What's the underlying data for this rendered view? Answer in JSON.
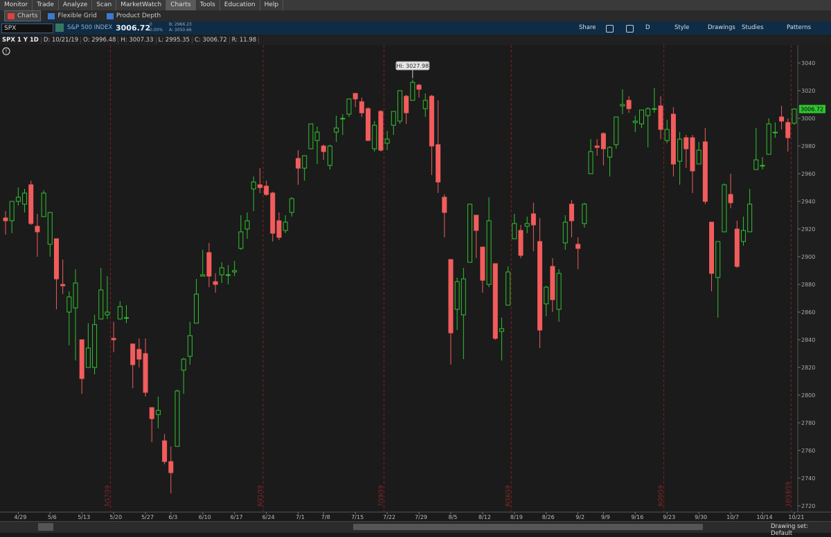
{
  "menu": [
    "Monitor",
    "Trade",
    "Analyze",
    "Scan",
    "MarketWatch",
    "Charts",
    "Tools",
    "Education",
    "Help"
  ],
  "tabs": [
    "Charts",
    "Flexible Grid",
    "Product Depth"
  ],
  "toolbar": {
    "symbol": "SPX",
    "description": "S&P 500 INDEX",
    "last": "3006.72",
    "change": "0",
    "change_pct": "0.00%",
    "bid": "B: 2966.23",
    "ask": "A: 3050.66",
    "buttons": [
      "Share",
      "D",
      "Style",
      "Drawings",
      "Studies",
      "Patterns"
    ]
  },
  "info": [
    "SPX 1 Y 1D",
    "D: 10/21/19",
    "O: 2996.48",
    "H: 3007.33",
    "L: 2995.35",
    "C: 3006.72",
    "R: 11.98"
  ],
  "footer": "Drawing set: Default",
  "chart_data": {
    "type": "candlestick",
    "up_color": "#2fc42f",
    "down_color": "#f25c5c",
    "annotation": "Hi: 3027.98",
    "last": 3006.72,
    "xlim": [
      -0.87,
      124.55
    ],
    "ylim": [
      2715.5,
      3053
    ],
    "yticks": [
      2720,
      2740,
      2760,
      2780,
      2800,
      2820,
      2840,
      2860,
      2880,
      2900,
      2920,
      2940,
      2960,
      2980,
      3000,
      3020,
      3040
    ],
    "xticks": [
      {
        "value": 2,
        "label": "4/29"
      },
      {
        "value": 7,
        "label": "5/6"
      },
      {
        "value": 12,
        "label": "5/13"
      },
      {
        "value": 17,
        "label": "5/20"
      },
      {
        "value": 22,
        "label": "5/27"
      },
      {
        "value": 26,
        "label": "6/3"
      },
      {
        "value": 31,
        "label": "6/10"
      },
      {
        "value": 36,
        "label": "6/17"
      },
      {
        "value": 41,
        "label": "6/24"
      },
      {
        "value": 46,
        "label": "7/1"
      },
      {
        "value": 50,
        "label": "7/8"
      },
      {
        "value": 55,
        "label": "7/15"
      },
      {
        "value": 60,
        "label": "7/22"
      },
      {
        "value": 65,
        "label": "7/29"
      },
      {
        "value": 70,
        "label": "8/5"
      },
      {
        "value": 75,
        "label": "8/12"
      },
      {
        "value": 80,
        "label": "8/19"
      },
      {
        "value": 85,
        "label": "8/26"
      },
      {
        "value": 90,
        "label": "9/2"
      },
      {
        "value": 94,
        "label": "9/9"
      },
      {
        "value": 99,
        "label": "9/16"
      },
      {
        "value": 104,
        "label": "9/23"
      },
      {
        "value": 109,
        "label": "9/30"
      },
      {
        "value": 114,
        "label": "10/7"
      },
      {
        "value": 119,
        "label": "10/14"
      },
      {
        "value": 124,
        "label": "10/21"
      }
    ],
    "expirations": [
      {
        "value": 16.5,
        "label": "5/17/19"
      },
      {
        "value": 40.5,
        "label": "6/21/19"
      },
      {
        "value": 59.5,
        "label": "7/19/19"
      },
      {
        "value": 79.5,
        "label": "8/16/19"
      },
      {
        "value": 103.5,
        "label": "9/20/19"
      },
      {
        "value": 123.5,
        "label": "10/18/19"
      }
    ],
    "open": [
      2928,
      2926,
      2940,
      2938,
      2952,
      2922,
      2929,
      2909,
      2913,
      2880,
      2860,
      2863,
      2840,
      2820,
      2820,
      2855,
      2858,
      2841,
      2855,
      2856,
      2837,
      2833,
      2830,
      2791,
      2786,
      2767,
      2752,
      2763,
      2818,
      2828,
      2852,
      2886,
      2903,
      2882,
      2887,
      2887,
      2889,
      2906,
      2920,
      2949,
      2952,
      2951,
      2946,
      2926,
      2919,
      2932,
      2971,
      2964,
      2978,
      2984,
      2980,
      2966,
      2990,
      3000,
      3003,
      3018,
      3012,
      3007,
      2978,
      3005,
      2982,
      2995,
      2998,
      3016,
      3013,
      3024,
      3007,
      3016,
      2981,
      2943,
      2898,
      2862,
      2858,
      2896,
      2930,
      2907,
      2880,
      2895,
      2846,
      2865,
      2913,
      2919,
      2922,
      2931,
      2911,
      2866,
      2893,
      2862,
      2910,
      2938,
      2909,
      2924,
      2960,
      2980,
      2989,
      2972,
      2981,
      3009,
      3013,
      2997,
      2996,
      3002,
      3007,
      3009,
      2984,
      3003,
      2969,
      2986,
      2986,
      2967,
      2983,
      2925,
      2885,
      2918,
      2945,
      2920,
      2911,
      2918,
      2963,
      2966,
      2974,
      2990,
      3001,
      2997,
      2996.48
    ],
    "high": [
      2933,
      2940,
      2950,
      2949,
      2955,
      2931,
      2948,
      2932,
      2913,
      2898,
      2875,
      2891,
      2840,
      2852,
      2858,
      2892,
      2886,
      2853,
      2868,
      2865,
      2837,
      2841,
      2841,
      2791,
      2799,
      2772,
      2763,
      2804,
      2827,
      2853,
      2884,
      2905,
      2910,
      2888,
      2896,
      2894,
      2897,
      2930,
      2932,
      2958,
      2964,
      2955,
      2947,
      2932,
      2930,
      2943,
      2977,
      2973,
      2996,
      2994,
      2981,
      2981,
      3002,
      3003,
      3014,
      3018,
      3015,
      3008,
      2998,
      3006,
      2991,
      3005,
      3020,
      3017,
      3027.98,
      3025,
      3018,
      3017,
      3013,
      2945,
      2898,
      2885,
      2892,
      2938,
      2930,
      2907,
      2943,
      2895,
      2856,
      2893,
      2931,
      2923,
      2929,
      2939,
      2928,
      2879,
      2899,
      2891,
      2930,
      2941,
      2914,
      2939,
      2985,
      2985,
      2990,
      2980,
      3001,
      3021,
      3016,
      3002,
      3006,
      3008,
      3022,
      3016,
      2999,
      3008,
      2990,
      2988,
      2988,
      2983,
      2993,
      2925,
      2911,
      2953,
      2960,
      2926,
      2929,
      2949,
      2993,
      2972,
      3000,
      2997,
      3009,
      3000,
      3007.33
    ],
    "low": [
      2916,
      2917,
      2937,
      2932,
      2923,
      2900,
      2929,
      2900,
      2862,
      2873,
      2836,
      2825,
      2801,
      2820,
      2815,
      2855,
      2855,
      2831,
      2855,
      2852,
      2805,
      2820,
      2799,
      2766,
      2776,
      2750,
      2729,
      2763,
      2801,
      2822,
      2852,
      2886,
      2878,
      2874,
      2881,
      2880,
      2886,
      2905,
      2913,
      2933,
      2946,
      2944,
      2911,
      2912,
      2917,
      2929,
      2952,
      2955,
      2978,
      2967,
      2970,
      2963,
      2983,
      2988,
      3001,
      3008,
      3001,
      2984,
      2976,
      2976,
      2977,
      2988,
      2996,
      2996,
      3013,
      3015,
      3001,
      2959,
      2946,
      2914,
      2822,
      2847,
      2826,
      2896,
      2899,
      2874,
      2878,
      2840,
      2825,
      2865,
      2913,
      2899,
      2917,
      2904,
      2834,
      2857,
      2860,
      2853,
      2905,
      2914,
      2891,
      2921,
      2960,
      2973,
      2966,
      2958,
      2978,
      3003,
      3004,
      2990,
      2993,
      2979,
      3004,
      2985,
      2982,
      2958,
      2952,
      2964,
      2946,
      2967,
      2938,
      2875,
      2856,
      2918,
      2935,
      2892,
      2908,
      2918,
      2963,
      2963,
      2974,
      2986,
      2992,
      2976,
      2995.35
    ],
    "close": [
      2926,
      2940,
      2943,
      2946,
      2924,
      2918,
      2946,
      2932,
      2884,
      2879,
      2871,
      2881,
      2812,
      2834,
      2851,
      2876,
      2860,
      2840,
      2864,
      2856,
      2822,
      2826,
      2802,
      2783,
      2789,
      2752,
      2744,
      2803,
      2826,
      2843,
      2873,
      2887,
      2886,
      2880,
      2892,
      2887,
      2890,
      2918,
      2926,
      2954,
      2950,
      2945,
      2917,
      2914,
      2925,
      2942,
      2964,
      2973,
      2996,
      2990,
      2976,
      2980,
      2993,
      3000,
      3014,
      3014,
      3004,
      2984,
      2995,
      2977,
      2985,
      3005,
      3020,
      3004,
      3026,
      3021,
      3013,
      2980,
      2954,
      2932,
      2845,
      2882,
      2884,
      2938,
      2919,
      2883,
      2926,
      2841,
      2848,
      2889,
      2924,
      2901,
      2924,
      2923,
      2847,
      2878,
      2869,
      2888,
      2925,
      2926,
      2906,
      2938,
      2976,
      2979,
      2978,
      2979,
      3001,
      3010,
      3007,
      2998,
      3006,
      3007,
      3007,
      2992,
      2992,
      2967,
      2985,
      2978,
      2962,
      2977,
      2940,
      2888,
      2911,
      2952,
      2939,
      2893,
      2919,
      2938,
      2970,
      2966,
      2996,
      2990,
      2998,
      2986,
      3006.72
    ]
  }
}
